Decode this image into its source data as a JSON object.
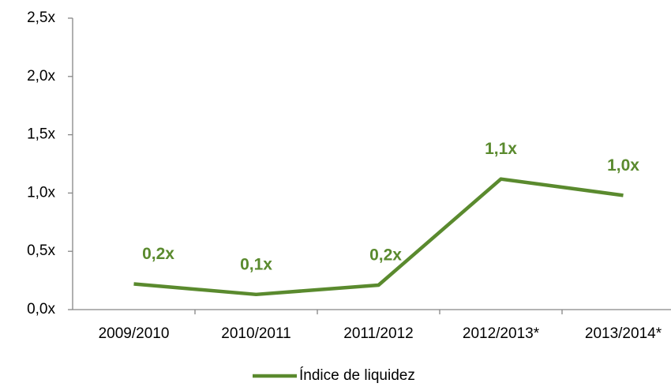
{
  "chart_data": {
    "type": "line",
    "categories": [
      "2009/2010",
      "2010/2011",
      "2011/2012",
      "2012/2013*",
      "2013/2014*"
    ],
    "series": [
      {
        "name": "Índice de liquidez",
        "color": "#5a8a2e",
        "values": [
          0.22,
          0.13,
          0.21,
          1.12,
          0.98
        ],
        "value_labels": [
          "0,2x",
          "0,1x",
          "0,2x",
          "1,1x",
          "1,0x"
        ]
      }
    ],
    "ylim": [
      0,
      2.5
    ],
    "yticks": [
      {
        "value": 0,
        "label": "0,0x"
      },
      {
        "value": 0.5,
        "label": "0,5x"
      },
      {
        "value": 1,
        "label": "1,0x"
      },
      {
        "value": 1.5,
        "label": "1,5x"
      },
      {
        "value": 2,
        "label": "2,0x"
      },
      {
        "value": 2.5,
        "label": "2,5x"
      }
    ],
    "grid": false,
    "legend": "bottom"
  }
}
